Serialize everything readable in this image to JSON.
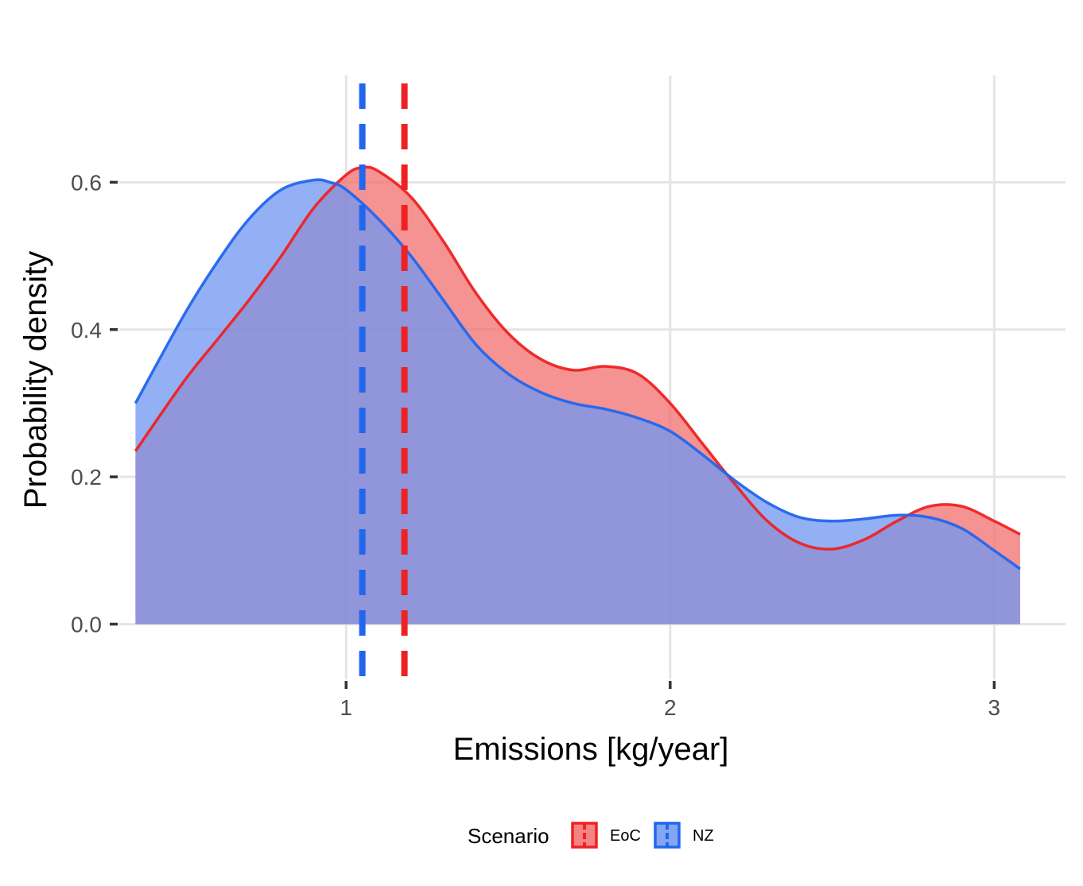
{
  "chart_data": {
    "type": "area",
    "title": "",
    "xlabel": "Emissions [kg/year]",
    "ylabel": "Probability density",
    "xlim": [
      0.3,
      3.22
    ],
    "ylim": [
      -0.075,
      0.745
    ],
    "x_ticks": [
      1,
      2,
      3
    ],
    "y_ticks": [
      0.0,
      0.2,
      0.4,
      0.6
    ],
    "x_tick_labels": [
      "1",
      "2",
      "3"
    ],
    "y_tick_labels": [
      "0.0",
      "0.2",
      "0.4",
      "0.6"
    ],
    "grid": true,
    "legend": {
      "title": "Scenario",
      "position": "bottom"
    },
    "colors": {
      "EoC": "#ee2222",
      "NZ": "#2266ee",
      "EoC_fill": "#f26e6e",
      "NZ_fill": "#6f95f0",
      "grid": "#e5e5e5"
    },
    "series": [
      {
        "name": "EoC",
        "mean": 1.18,
        "x": [
          0.35,
          0.5,
          0.6,
          0.7,
          0.8,
          0.9,
          1.0,
          1.05,
          1.1,
          1.2,
          1.3,
          1.4,
          1.5,
          1.6,
          1.7,
          1.8,
          1.9,
          2.0,
          2.1,
          2.2,
          2.3,
          2.4,
          2.5,
          2.6,
          2.7,
          2.8,
          2.9,
          3.0,
          3.08
        ],
        "y": [
          0.235,
          0.33,
          0.385,
          0.44,
          0.5,
          0.565,
          0.61,
          0.62,
          0.615,
          0.58,
          0.52,
          0.45,
          0.395,
          0.36,
          0.345,
          0.35,
          0.34,
          0.3,
          0.245,
          0.19,
          0.14,
          0.11,
          0.102,
          0.115,
          0.14,
          0.16,
          0.16,
          0.14,
          0.122
        ]
      },
      {
        "name": "NZ",
        "mean": 1.05,
        "x": [
          0.35,
          0.5,
          0.6,
          0.7,
          0.8,
          0.9,
          0.95,
          1.0,
          1.1,
          1.2,
          1.3,
          1.4,
          1.5,
          1.6,
          1.7,
          1.8,
          1.9,
          2.0,
          2.1,
          2.2,
          2.3,
          2.4,
          2.5,
          2.6,
          2.7,
          2.8,
          2.9,
          3.0,
          3.08
        ],
        "y": [
          0.3,
          0.42,
          0.49,
          0.55,
          0.59,
          0.603,
          0.6,
          0.59,
          0.55,
          0.5,
          0.44,
          0.38,
          0.34,
          0.315,
          0.3,
          0.292,
          0.28,
          0.262,
          0.23,
          0.195,
          0.165,
          0.145,
          0.14,
          0.143,
          0.148,
          0.145,
          0.13,
          0.1,
          0.075
        ]
      }
    ]
  }
}
